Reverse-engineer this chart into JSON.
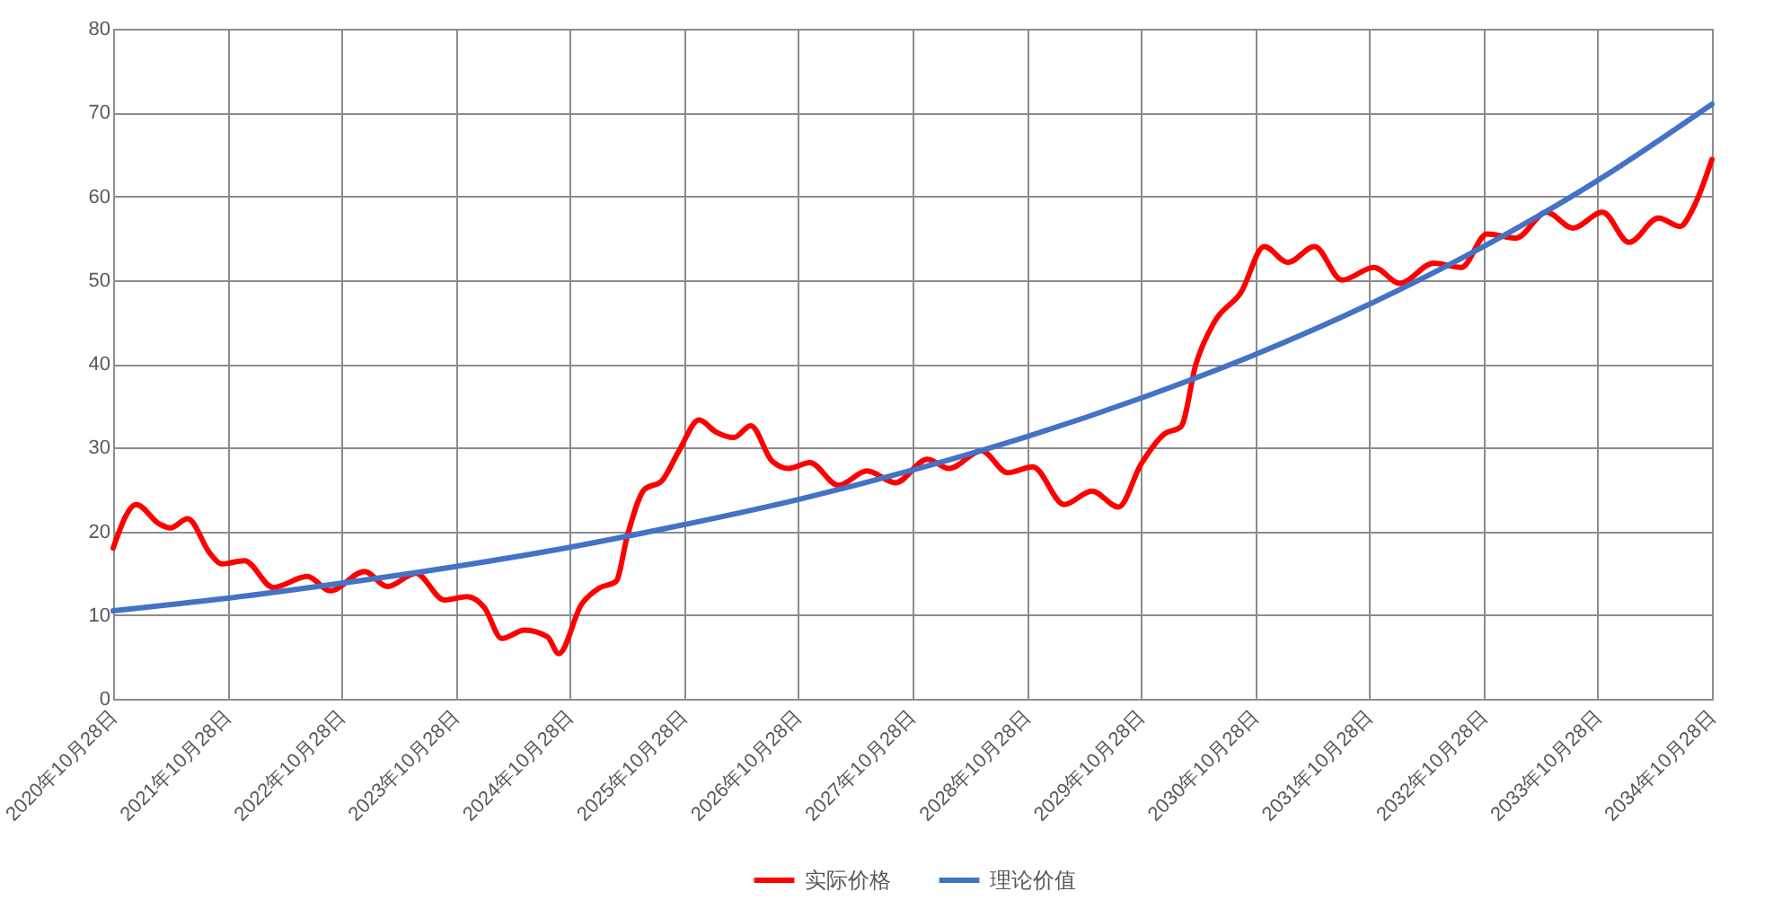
{
  "chart_data": {
    "type": "line",
    "legend": "bottom",
    "grid": true,
    "marker": "none",
    "line_style": "solid",
    "ylim": [
      0,
      80
    ],
    "yticks": [
      0,
      10,
      20,
      30,
      40,
      50,
      60,
      70,
      80
    ],
    "xlim": [
      "2020-10-28",
      "2034-10-28"
    ],
    "xticks": [
      {
        "value": "2020-10-28",
        "label": "2020年10月28日"
      },
      {
        "value": "2021-10-28",
        "label": "2021年10月28日"
      },
      {
        "value": "2022-10-28",
        "label": "2022年10月28日"
      },
      {
        "value": "2023-10-28",
        "label": "2023年10月28日"
      },
      {
        "value": "2024-10-28",
        "label": "2024年10月28日"
      },
      {
        "value": "2025-10-28",
        "label": "2025年10月28日"
      },
      {
        "value": "2026-10-28",
        "label": "2026年10月28日"
      },
      {
        "value": "2027-10-28",
        "label": "2027年10月28日"
      },
      {
        "value": "2028-10-28",
        "label": "2028年10月28日"
      },
      {
        "value": "2029-10-28",
        "label": "2029年10月28日"
      },
      {
        "value": "2030-10-28",
        "label": "2030年10月28日"
      },
      {
        "value": "2031-10-28",
        "label": "2031年10月28日"
      },
      {
        "value": "2032-10-28",
        "label": "2032年10月28日"
      },
      {
        "value": "2033-10-28",
        "label": "2033年10月28日"
      },
      {
        "value": "2034-10-28",
        "label": "2034年10月28日"
      }
    ],
    "series": [
      {
        "name": "实际价格",
        "color": "#ff0000",
        "x": [
          "2020-10-28",
          "2021-01-10",
          "2021-03-24",
          "2021-04-29",
          "2021-06-23",
          "2021-09-04",
          "2021-10-10",
          "2021-12-22",
          "2022-03-24",
          "2022-07-11",
          "2022-09-22",
          "2023-01-10",
          "2023-03-24",
          "2023-06-23",
          "2023-09-22",
          "2023-12-04",
          "2024-01-28",
          "2024-03-24",
          "2024-06-05",
          "2024-08-17",
          "2024-09-22",
          "2024-12-04",
          "2025-01-28",
          "2025-03-24",
          "2025-04-29",
          "2025-06-23",
          "2025-08-17",
          "2025-10-10",
          "2025-12-15",
          "2026-02-05",
          "2026-04-05",
          "2026-05-29",
          "2026-08-05",
          "2026-09-28",
          "2026-12-04",
          "2027-03-05",
          "2027-06-05",
          "2027-09-04",
          "2027-12-15",
          "2028-02-22",
          "2028-06-05",
          "2028-08-28",
          "2028-11-16",
          "2029-02-25",
          "2029-05-24",
          "2029-08-17",
          "2029-10-28",
          "2030-01-10",
          "2030-03-05",
          "2030-04-22",
          "2030-06-20",
          "2030-09-14",
          "2030-11-26",
          "2031-02-10",
          "2031-05-06",
          "2031-08-02",
          "2031-11-12",
          "2032-02-03",
          "2032-05-21",
          "2032-08-17",
          "2032-11-08",
          "2033-02-08",
          "2033-05-17",
          "2033-08-09",
          "2033-11-12",
          "2034-02-05",
          "2034-05-10",
          "2034-07-18",
          "2034-08-28",
          "2034-10-28"
        ],
        "values": [
          18,
          23.2,
          20.9,
          20.4,
          21.5,
          17.3,
          16.1,
          16.5,
          13.3,
          14.6,
          12.9,
          15.2,
          13.4,
          15,
          11.8,
          12.2,
          10.9,
          7.2,
          8.2,
          7.4,
          5.4,
          11.3,
          13.2,
          14,
          19.4,
          25,
          26,
          29.5,
          33.3,
          31.9,
          31.2,
          32.6,
          28.4,
          27.5,
          28.2,
          25.5,
          27.2,
          25.8,
          28.6,
          27.5,
          29.6,
          27,
          27.7,
          23.2,
          24.8,
          22.9,
          28,
          31.6,
          32.5,
          40,
          45,
          48.6,
          54,
          52.1,
          54,
          50,
          51.5,
          49.6,
          52,
          51.5,
          55.5,
          55,
          58.1,
          56.2,
          58.1,
          54.5,
          57.4,
          56.4,
          58.5,
          64.4
        ]
      },
      {
        "name": "理论价值",
        "color": "#4472c4",
        "x": [
          "2020-10-28",
          "2021-10-28",
          "2022-10-28",
          "2023-10-28",
          "2024-10-28",
          "2025-10-28",
          "2026-10-28",
          "2027-10-28",
          "2028-10-28",
          "2029-10-28",
          "2030-10-28",
          "2031-10-28",
          "2032-10-28",
          "2033-10-28",
          "2034-10-28"
        ],
        "values": [
          10.5,
          12.0,
          13.8,
          15.8,
          18.1,
          20.8,
          23.8,
          27.3,
          31.3,
          35.9,
          41.1,
          47.1,
          54.0,
          61.9,
          71.0
        ]
      }
    ]
  }
}
